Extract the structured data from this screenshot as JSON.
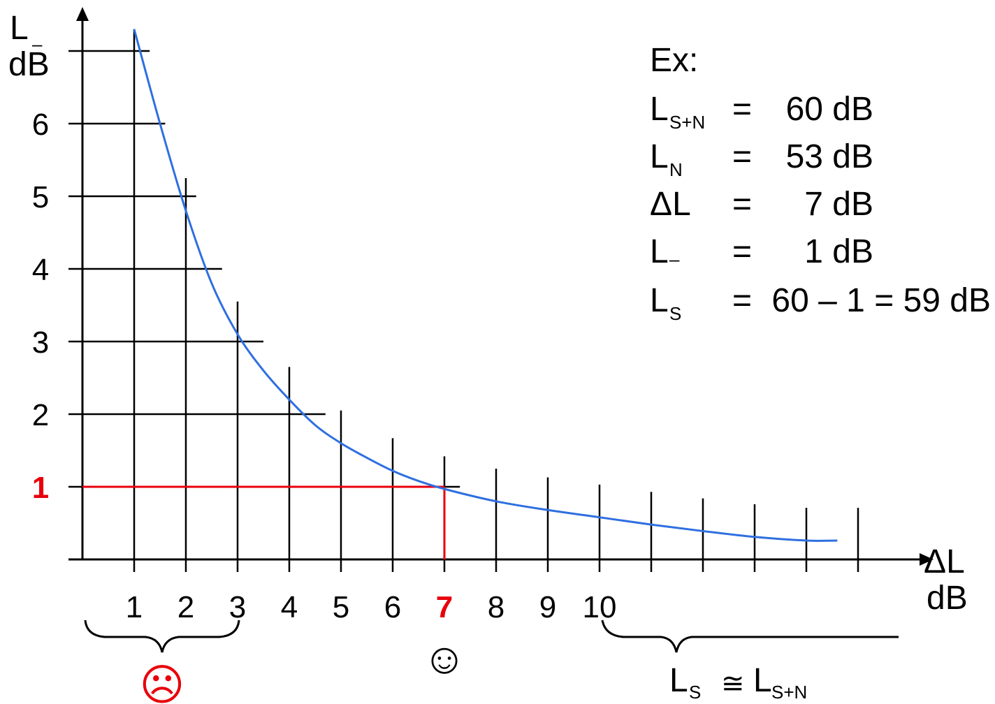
{
  "chart_data": {
    "type": "line",
    "y_axis_label": {
      "main": "L",
      "sub": "–",
      "unit": "dB"
    },
    "x_axis_label": {
      "main": "ΔL",
      "unit": "dB"
    },
    "xlim": [
      0,
      15
    ],
    "ylim": [
      0,
      7
    ],
    "x_tick_labels": [
      "1",
      "2",
      "3",
      "4",
      "5",
      "6",
      "7",
      "8",
      "9",
      "10"
    ],
    "y_tick_labels": [
      "1",
      "2",
      "3",
      "4",
      "5",
      "6"
    ],
    "highlight": {
      "x": 7,
      "y": 1,
      "x_label": "7",
      "y_label": "1",
      "color": "#e8000b"
    },
    "series": [
      {
        "color": "#2f6fe0",
        "points": [
          [
            1,
            7.3
          ],
          [
            1.5,
            6.0
          ],
          [
            2,
            4.8
          ],
          [
            2.5,
            3.8
          ],
          [
            3,
            3.1
          ],
          [
            3.5,
            2.6
          ],
          [
            4,
            2.2
          ],
          [
            4.5,
            1.85
          ],
          [
            5,
            1.6
          ],
          [
            5.5,
            1.4
          ],
          [
            6,
            1.22
          ],
          [
            6.5,
            1.08
          ],
          [
            7,
            0.97
          ],
          [
            8,
            0.8
          ],
          [
            9,
            0.68
          ],
          [
            10,
            0.58
          ],
          [
            11,
            0.48
          ],
          [
            12,
            0.39
          ],
          [
            13,
            0.31
          ],
          [
            14,
            0.26
          ],
          [
            14.6,
            0.26
          ]
        ]
      }
    ],
    "annotations": {
      "bad_range": {
        "from": 0,
        "to": 3,
        "symbol": "☹",
        "color": "#e8000b"
      },
      "good_point": {
        "x": 7,
        "symbol": "☺"
      },
      "high_range": {
        "from": 10,
        "to": 15.5,
        "formula": {
          "a": "L",
          "a_sub": "S",
          "op": "≅",
          "b": "L",
          "b_sub": "S+N"
        }
      }
    }
  },
  "example": {
    "title": "Ex:",
    "rows": [
      {
        "sym": "L",
        "sub": "S+N",
        "eq": "=",
        "value": "60 dB"
      },
      {
        "sym": "L",
        "sub": "N",
        "eq": "=",
        "value": "53 dB"
      },
      {
        "sym": "ΔL",
        "sub": "",
        "eq": "=",
        "value": "7 dB"
      },
      {
        "sym": "L",
        "sub": "–",
        "eq": "=",
        "value": "1 dB"
      },
      {
        "sym": "L",
        "sub": "S",
        "eq": "=",
        "value": "60 – 1 = 59 dB"
      }
    ]
  }
}
